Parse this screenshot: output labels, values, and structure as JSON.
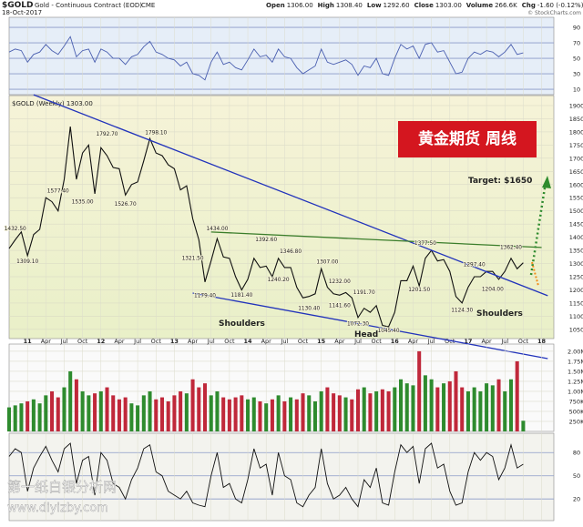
{
  "header": {
    "symbol": "$GOLD",
    "name": "Gold - Continuous Contract (EOD)",
    "exchange": "CME",
    "date": "18-Oct-2017",
    "quote": [
      {
        "label": "Open",
        "value": "1306.00"
      },
      {
        "label": "High",
        "value": "1308.40"
      },
      {
        "label": "Low",
        "value": "1292.60"
      },
      {
        "label": "Close",
        "value": "1303.00"
      },
      {
        "label": "Volume",
        "value": "266.6K"
      },
      {
        "label": "Chg",
        "value": "-1.60 (-0.12%)"
      }
    ],
    "credit": "© StockCharts.com"
  },
  "watermark": {
    "site_name": "第一纸白银分析网",
    "url": "www.diyizby.com"
  },
  "chart_data": [
    {
      "type": "line",
      "panel": "rsi",
      "color": "#4a5fb0",
      "x": [
        "2010-10",
        "2010-11",
        "2010-12",
        "2011-01",
        "2011-02",
        "2011-03",
        "2011-04",
        "2011-05",
        "2011-06",
        "2011-07",
        "2011-08",
        "2011-09",
        "2011-10",
        "2011-11",
        "2011-12",
        "2012-01",
        "2012-02",
        "2012-03",
        "2012-04",
        "2012-05",
        "2012-06",
        "2012-07",
        "2012-08",
        "2012-09",
        "2012-10",
        "2012-11",
        "2012-12",
        "2013-01",
        "2013-02",
        "2013-03",
        "2013-04",
        "2013-05",
        "2013-06",
        "2013-07",
        "2013-08",
        "2013-09",
        "2013-10",
        "2013-11",
        "2013-12",
        "2014-01",
        "2014-02",
        "2014-03",
        "2014-04",
        "2014-05",
        "2014-06",
        "2014-07",
        "2014-08",
        "2014-09",
        "2014-10",
        "2014-11",
        "2014-12",
        "2015-01",
        "2015-02",
        "2015-03",
        "2015-04",
        "2015-05",
        "2015-06",
        "2015-07",
        "2015-08",
        "2015-09",
        "2015-10",
        "2015-11",
        "2015-12",
        "2016-01",
        "2016-02",
        "2016-03",
        "2016-04",
        "2016-05",
        "2016-06",
        "2016-07",
        "2016-08",
        "2016-09",
        "2016-10",
        "2016-11",
        "2016-12",
        "2017-01",
        "2017-02",
        "2017-03",
        "2017-04",
        "2017-05",
        "2017-06",
        "2017-07",
        "2017-08",
        "2017-09",
        "2017-10"
      ],
      "values": [
        58,
        62,
        60,
        45,
        55,
        58,
        68,
        60,
        55,
        66,
        78,
        52,
        60,
        62,
        45,
        62,
        58,
        50,
        50,
        42,
        52,
        55,
        65,
        72,
        58,
        55,
        50,
        48,
        40,
        45,
        30,
        28,
        22,
        45,
        58,
        42,
        45,
        38,
        35,
        48,
        62,
        52,
        54,
        45,
        62,
        52,
        50,
        38,
        30,
        35,
        40,
        62,
        45,
        42,
        45,
        48,
        42,
        28,
        40,
        38,
        50,
        30,
        28,
        50,
        68,
        62,
        66,
        50,
        68,
        70,
        58,
        60,
        45,
        30,
        32,
        50,
        58,
        55,
        60,
        58,
        52,
        58,
        68,
        55,
        57
      ],
      "xlim": [
        "2010-10",
        "2018-03"
      ],
      "ylim": [
        3,
        103
      ],
      "yticks": [
        10,
        30,
        50,
        70,
        90
      ]
    },
    {
      "type": "line",
      "panel": "price",
      "title": "$GOLD (Weekly) 1303.00",
      "color": "#111111",
      "x": [
        "2010-10",
        "2010-11",
        "2010-12",
        "2011-01",
        "2011-02",
        "2011-03",
        "2011-04",
        "2011-05",
        "2011-06",
        "2011-07",
        "2011-08",
        "2011-09",
        "2011-10",
        "2011-11",
        "2011-12",
        "2012-01",
        "2012-02",
        "2012-03",
        "2012-04",
        "2012-05",
        "2012-06",
        "2012-07",
        "2012-08",
        "2012-09",
        "2012-10",
        "2012-11",
        "2012-12",
        "2013-01",
        "2013-02",
        "2013-03",
        "2013-04",
        "2013-05",
        "2013-06",
        "2013-07",
        "2013-08",
        "2013-09",
        "2013-10",
        "2013-11",
        "2013-12",
        "2014-01",
        "2014-02",
        "2014-03",
        "2014-04",
        "2014-05",
        "2014-06",
        "2014-07",
        "2014-08",
        "2014-09",
        "2014-10",
        "2014-11",
        "2014-12",
        "2015-01",
        "2015-02",
        "2015-03",
        "2015-04",
        "2015-05",
        "2015-06",
        "2015-07",
        "2015-08",
        "2015-09",
        "2015-10",
        "2015-11",
        "2015-12",
        "2016-01",
        "2016-02",
        "2016-03",
        "2016-04",
        "2016-05",
        "2016-06",
        "2016-07",
        "2016-08",
        "2016-09",
        "2016-10",
        "2016-11",
        "2016-12",
        "2017-01",
        "2017-02",
        "2017-03",
        "2017-04",
        "2017-05",
        "2017-06",
        "2017-07",
        "2017-08",
        "2017-09",
        "2017-10"
      ],
      "values": [
        1357,
        1390,
        1420,
        1330,
        1410,
        1430,
        1550,
        1535,
        1500,
        1620,
        1820,
        1620,
        1720,
        1750,
        1565,
        1740,
        1710,
        1665,
        1660,
        1560,
        1600,
        1610,
        1690,
        1775,
        1720,
        1710,
        1675,
        1660,
        1580,
        1595,
        1470,
        1390,
        1230,
        1310,
        1395,
        1325,
        1320,
        1250,
        1200,
        1240,
        1320,
        1285,
        1290,
        1250,
        1320,
        1285,
        1285,
        1210,
        1170,
        1175,
        1185,
        1280,
        1210,
        1185,
        1180,
        1190,
        1170,
        1095,
        1130,
        1115,
        1140,
        1065,
        1060,
        1115,
        1235,
        1235,
        1290,
        1215,
        1320,
        1350,
        1310,
        1315,
        1270,
        1175,
        1150,
        1210,
        1250,
        1250,
        1270,
        1270,
        1240,
        1270,
        1320,
        1280,
        1303
      ],
      "xlim": [
        "2010-10",
        "2018-03"
      ],
      "ylim": [
        1015,
        1938
      ],
      "yticks": [
        1050,
        1100,
        1150,
        1200,
        1250,
        1300,
        1350,
        1400,
        1450,
        1500,
        1550,
        1600,
        1650,
        1700,
        1750,
        1800,
        1850,
        1900
      ],
      "xticks": [
        {
          "value": "2011-01",
          "label": "11"
        },
        {
          "value": "2011-04",
          "label": "Apr"
        },
        {
          "value": "2011-07",
          "label": "Jul"
        },
        {
          "value": "2011-10",
          "label": "Oct"
        },
        {
          "value": "2012-01",
          "label": "12"
        },
        {
          "value": "2012-04",
          "label": "Apr"
        },
        {
          "value": "2012-07",
          "label": "Jul"
        },
        {
          "value": "2012-10",
          "label": "Oct"
        },
        {
          "value": "2013-01",
          "label": "13"
        },
        {
          "value": "2013-04",
          "label": "Apr"
        },
        {
          "value": "2013-07",
          "label": "Jul"
        },
        {
          "value": "2013-10",
          "label": "Oct"
        },
        {
          "value": "2014-01",
          "label": "14"
        },
        {
          "value": "2014-04",
          "label": "Apr"
        },
        {
          "value": "2014-07",
          "label": "Jul"
        },
        {
          "value": "2014-10",
          "label": "Oct"
        },
        {
          "value": "2015-01",
          "label": "15"
        },
        {
          "value": "2015-04",
          "label": "Apr"
        },
        {
          "value": "2015-07",
          "label": "Jul"
        },
        {
          "value": "2015-10",
          "label": "Oct"
        },
        {
          "value": "2016-01",
          "label": "16"
        },
        {
          "value": "2016-04",
          "label": "Apr"
        },
        {
          "value": "2016-07",
          "label": "Jul"
        },
        {
          "value": "2016-10",
          "label": "Oct"
        },
        {
          "value": "2017-01",
          "label": "17"
        },
        {
          "value": "2017-04",
          "label": "Apr"
        },
        {
          "value": "2017-07",
          "label": "Jul"
        },
        {
          "value": "2017-10",
          "label": "Oct"
        },
        {
          "value": "2018-01",
          "label": "18"
        }
      ],
      "price_labels": [
        {
          "x": "2010-11",
          "value": 1432.5,
          "label": "1432.50"
        },
        {
          "x": "2011-01",
          "value": 1309.1,
          "label": "1309.10"
        },
        {
          "x": "2011-06",
          "value": 1577.4,
          "label": "1577.40"
        },
        {
          "x": "2011-10",
          "value": 1535.0,
          "label": "1535.00"
        },
        {
          "x": "2012-02",
          "value": 1792.7,
          "label": "1792.70"
        },
        {
          "x": "2012-05",
          "value": 1526.7,
          "label": "1526.70"
        },
        {
          "x": "2012-10",
          "value": 1798.1,
          "label": "1798.10"
        },
        {
          "x": "2013-08",
          "value": 1434.0,
          "label": "1434.00"
        },
        {
          "x": "2013-04",
          "value": 1321.5,
          "label": "1321.50"
        },
        {
          "x": "2013-06",
          "value": 1179.4,
          "label": "1179.40"
        },
        {
          "x": "2013-12",
          "value": 1181.4,
          "label": "1181.40"
        },
        {
          "x": "2014-04",
          "value": 1392.6,
          "label": "1392.60"
        },
        {
          "x": "2014-06",
          "value": 1240.2,
          "label": "1240.20"
        },
        {
          "x": "2014-08",
          "value": 1346.8,
          "label": "1346.80"
        },
        {
          "x": "2015-02",
          "value": 1307.0,
          "label": "1307.00"
        },
        {
          "x": "2015-04",
          "value": 1232.0,
          "label": "1232.00"
        },
        {
          "x": "2015-08",
          "value": 1191.7,
          "label": "1191.70"
        },
        {
          "x": "2015-04",
          "value": 1141.6,
          "label": "1141.60"
        },
        {
          "x": "2014-11",
          "value": 1130.4,
          "label": "1130.40"
        },
        {
          "x": "2015-07",
          "value": 1072.3,
          "label": "1072.30"
        },
        {
          "x": "2015-12",
          "value": 1045.4,
          "label": "1045.40"
        },
        {
          "x": "2016-05",
          "value": 1201.5,
          "label": "1201.50"
        },
        {
          "x": "2016-06",
          "value": 1377.5,
          "label": "1377.50"
        },
        {
          "x": "2017-02",
          "value": 1297.4,
          "label": "1297.40"
        },
        {
          "x": "2016-12",
          "value": 1124.3,
          "label": "1124.30"
        },
        {
          "x": "2017-05",
          "value": 1204.0,
          "label": "1204.00"
        },
        {
          "x": "2017-08",
          "value": 1362.4,
          "label": "1362.40"
        }
      ],
      "trend_lines": [
        {
          "color": "#2233bb",
          "points": [
            [
              "2011-02",
              1941
            ],
            [
              "2018-02",
              1178
            ]
          ]
        },
        {
          "color": "#2233bb",
          "points": [
            [
              "2013-04",
              1188
            ],
            [
              "2018-02",
              939
            ]
          ]
        },
        {
          "color": "#3a7d2a",
          "points": [
            [
              "2013-07",
              1420
            ],
            [
              "2018-01",
              1361
            ]
          ]
        }
      ],
      "annotations": {
        "box_text": "黄金期货 周线",
        "target": "Target:  $1650",
        "left_shoulder": "Shoulders",
        "head": "Head",
        "right_shoulder": "Shoulders"
      }
    },
    {
      "type": "bar",
      "panel": "volume",
      "up_color": "#2e8b2e",
      "down_color": "#c0283a",
      "x": [
        "2010-10",
        "2010-11",
        "2010-12",
        "2011-01",
        "2011-02",
        "2011-03",
        "2011-04",
        "2011-05",
        "2011-06",
        "2011-07",
        "2011-08",
        "2011-09",
        "2011-10",
        "2011-11",
        "2011-12",
        "2012-01",
        "2012-02",
        "2012-03",
        "2012-04",
        "2012-05",
        "2012-06",
        "2012-07",
        "2012-08",
        "2012-09",
        "2012-10",
        "2012-11",
        "2012-12",
        "2013-01",
        "2013-02",
        "2013-03",
        "2013-04",
        "2013-05",
        "2013-06",
        "2013-07",
        "2013-08",
        "2013-09",
        "2013-10",
        "2013-11",
        "2013-12",
        "2014-01",
        "2014-02",
        "2014-03",
        "2014-04",
        "2014-05",
        "2014-06",
        "2014-07",
        "2014-08",
        "2014-09",
        "2014-10",
        "2014-11",
        "2014-12",
        "2015-01",
        "2015-02",
        "2015-03",
        "2015-04",
        "2015-05",
        "2015-06",
        "2015-07",
        "2015-08",
        "2015-09",
        "2015-10",
        "2015-11",
        "2015-12",
        "2016-01",
        "2016-02",
        "2016-03",
        "2016-04",
        "2016-05",
        "2016-06",
        "2016-07",
        "2016-08",
        "2016-09",
        "2016-10",
        "2016-11",
        "2016-12",
        "2017-01",
        "2017-02",
        "2017-03",
        "2017-04",
        "2017-05",
        "2017-06",
        "2017-07",
        "2017-08",
        "2017-09",
        "2017-10"
      ],
      "values": [
        600000,
        650000,
        700000,
        750000,
        800000,
        700000,
        900000,
        1000000,
        850000,
        1100000,
        1500000,
        1300000,
        1000000,
        900000,
        950000,
        1000000,
        1100000,
        900000,
        800000,
        850000,
        700000,
        650000,
        900000,
        1000000,
        800000,
        850000,
        750000,
        900000,
        1000000,
        950000,
        1300000,
        1100000,
        1200000,
        900000,
        1000000,
        850000,
        800000,
        850000,
        900000,
        800000,
        850000,
        750000,
        700000,
        800000,
        900000,
        750000,
        850000,
        800000,
        950000,
        900000,
        750000,
        1000000,
        1100000,
        950000,
        900000,
        850000,
        800000,
        1050000,
        1100000,
        950000,
        1000000,
        1050000,
        1000000,
        1100000,
        1300000,
        1200000,
        1150000,
        2000000,
        1400000,
        1300000,
        1100000,
        1200000,
        1250000,
        1500000,
        1100000,
        1000000,
        1100000,
        1000000,
        1200000,
        1150000,
        1300000,
        1000000,
        1300000,
        1750000,
        266600
      ],
      "xlim": [
        "2010-10",
        "2018-03"
      ],
      "ylim": [
        0,
        2180000
      ],
      "yticks": [
        {
          "value": 250000,
          "label": "250K"
        },
        {
          "value": 500000,
          "label": "500K"
        },
        {
          "value": 750000,
          "label": "750K"
        },
        {
          "value": 1000000,
          "label": "1.00M"
        },
        {
          "value": 1250000,
          "label": "1.25M"
        },
        {
          "value": 1500000,
          "label": "1.50M"
        },
        {
          "value": 1750000,
          "label": "1.75M"
        },
        {
          "value": 2000000,
          "label": "2.00M"
        }
      ]
    },
    {
      "type": "line",
      "panel": "stochastic",
      "color": "#111111",
      "x": [
        "2010-10",
        "2010-11",
        "2010-12",
        "2011-01",
        "2011-02",
        "2011-03",
        "2011-04",
        "2011-05",
        "2011-06",
        "2011-07",
        "2011-08",
        "2011-09",
        "2011-10",
        "2011-11",
        "2011-12",
        "2012-01",
        "2012-02",
        "2012-03",
        "2012-04",
        "2012-05",
        "2012-06",
        "2012-07",
        "2012-08",
        "2012-09",
        "2012-10",
        "2012-11",
        "2012-12",
        "2013-01",
        "2013-02",
        "2013-03",
        "2013-04",
        "2013-05",
        "2013-06",
        "2013-07",
        "2013-08",
        "2013-09",
        "2013-10",
        "2013-11",
        "2013-12",
        "2014-01",
        "2014-02",
        "2014-03",
        "2014-04",
        "2014-05",
        "2014-06",
        "2014-07",
        "2014-08",
        "2014-09",
        "2014-10",
        "2014-11",
        "2014-12",
        "2015-01",
        "2015-02",
        "2015-03",
        "2015-04",
        "2015-05",
        "2015-06",
        "2015-07",
        "2015-08",
        "2015-09",
        "2015-10",
        "2015-11",
        "2015-12",
        "2016-01",
        "2016-02",
        "2016-03",
        "2016-04",
        "2016-05",
        "2016-06",
        "2016-07",
        "2016-08",
        "2016-09",
        "2016-10",
        "2016-11",
        "2016-12",
        "2017-01",
        "2017-02",
        "2017-03",
        "2017-04",
        "2017-05",
        "2017-06",
        "2017-07",
        "2017-08",
        "2017-09",
        "2017-10"
      ],
      "values": [
        75,
        85,
        80,
        30,
        60,
        75,
        88,
        70,
        55,
        85,
        92,
        40,
        70,
        75,
        25,
        80,
        70,
        40,
        35,
        20,
        45,
        60,
        85,
        90,
        55,
        50,
        30,
        25,
        20,
        30,
        15,
        12,
        10,
        50,
        80,
        35,
        40,
        20,
        15,
        45,
        85,
        60,
        65,
        25,
        80,
        50,
        45,
        15,
        10,
        25,
        35,
        85,
        40,
        20,
        25,
        35,
        20,
        10,
        45,
        35,
        60,
        15,
        12,
        55,
        90,
        80,
        88,
        40,
        85,
        92,
        60,
        65,
        30,
        12,
        15,
        55,
        80,
        70,
        80,
        75,
        45,
        60,
        90,
        60,
        65
      ],
      "xlim": [
        "2010-10",
        "2018-03"
      ],
      "ylim": [
        -8,
        105
      ],
      "yticks": [
        20,
        50,
        80
      ]
    }
  ]
}
